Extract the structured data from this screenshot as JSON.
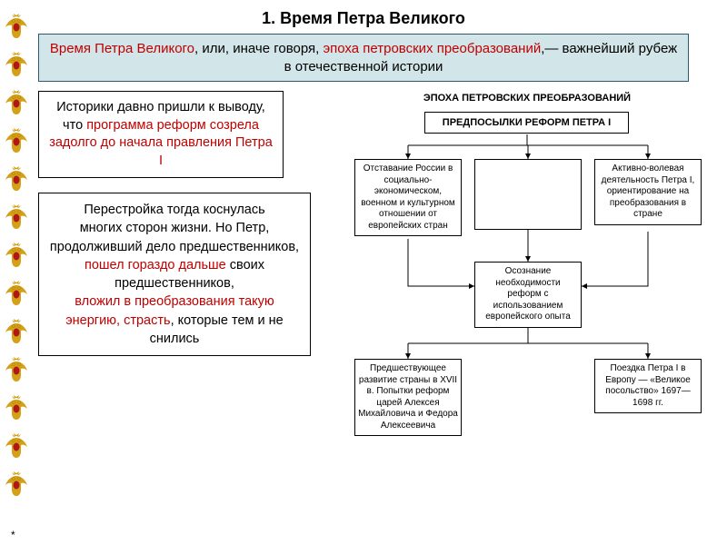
{
  "title": "1. Время Петра Великого",
  "banner": {
    "p1_red": "Время Петра Великого",
    "p2": ", или, иначе говоря, ",
    "p3_red": "эпоха петровских преобразований",
    "p4": ",— важнейший рубеж в отечественной истории"
  },
  "box2": {
    "t1": "Историки давно пришли к выводу, что ",
    "t2_red": "программа реформ созрела задолго до начала правления Петра I"
  },
  "box3": {
    "t1": "Перестройка тогда коснулась",
    "t2": "многих сторон жизни. Но Петр, продолживший дело предшественников, ",
    "t3_red": "пошел гораздо дальше ",
    "t4": "своих предшественников,",
    "t5_red": "вложил в преобразования такую энергию, страсть",
    "t6": ", которые тем и не снились"
  },
  "diagram": {
    "title": "ЭПОХА ПЕТРОВСКИХ ПРЕОБРАЗОВАНИЙ",
    "root": "ПРЕДПОСЫЛКИ РЕФОРМ ПЕТРА I",
    "f1": "Отставание России в социально-экономическом, военном и культурном отношении от европейских стран",
    "f2": "",
    "f3": "Активно-волевая деятельность Петра I, ориентирование на преобразования в стране",
    "f4": "Осознание необходимости реформ с использованием европейского опыта",
    "f5": "Предшествующее развитие страны в XVII в. Попытки реформ царей Алексея Михайловича и Федора Алексеевича",
    "f6": "Поездка Петра I в Европу — «Великое посольство» 1697—1698 гг."
  },
  "colors": {
    "banner_bg": "#d2e5e8",
    "red": "#c00000",
    "border": "#000000",
    "eagle_gold": "#d4a017",
    "eagle_red": "#b01818"
  },
  "eagle_count": 13,
  "asterisk": "*"
}
